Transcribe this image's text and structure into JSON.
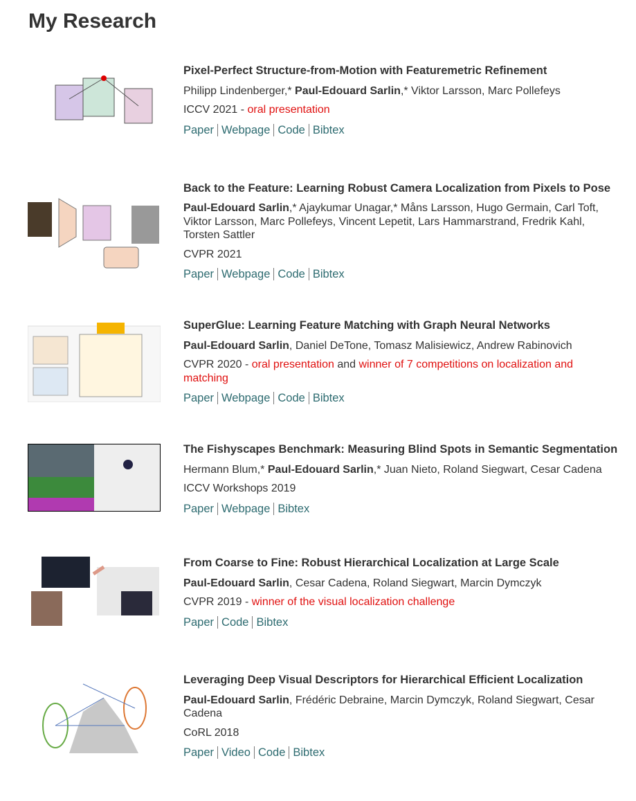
{
  "header": {
    "title": "My Research"
  },
  "publications": [
    {
      "title": "Pixel-Perfect Structure-from-Motion with Featuremetric Refinement",
      "authors": [
        {
          "text": "Philipp Lindenberger,* "
        },
        {
          "text": "Paul-Edouard Sarlin",
          "bold": true
        },
        {
          "text": ",* Viktor Larsson, Marc Pollefeys"
        }
      ],
      "venue": [
        {
          "text": "ICCV 2021 - "
        },
        {
          "text": "oral presentation",
          "highlight": true
        }
      ],
      "links": [
        "Paper",
        "Webpage",
        "Code",
        "Bibtex"
      ]
    },
    {
      "title": "Back to the Feature: Learning Robust Camera Localization from Pixels to Pose",
      "authors": [
        {
          "text": "Paul-Edouard Sarlin",
          "bold": true
        },
        {
          "text": ",* Ajaykumar Unagar,* Måns Larsson, Hugo Germain, Carl Toft, Viktor Larsson, Marc Pollefeys, Vincent Lepetit, Lars Hammarstrand, Fredrik Kahl, Torsten Sattler"
        }
      ],
      "venue": [
        {
          "text": "CVPR 2021"
        }
      ],
      "links": [
        "Paper",
        "Webpage",
        "Code",
        "Bibtex"
      ]
    },
    {
      "title": "SuperGlue: Learning Feature Matching with Graph Neural Networks",
      "authors": [
        {
          "text": "Paul-Edouard Sarlin",
          "bold": true
        },
        {
          "text": ", Daniel DeTone, Tomasz Malisiewicz, Andrew Rabinovich"
        }
      ],
      "venue": [
        {
          "text": "CVPR 2020 - "
        },
        {
          "text": "oral presentation",
          "highlight": true
        },
        {
          "text": " and "
        },
        {
          "text": "winner of 7 competitions on localization and matching",
          "highlight": true
        }
      ],
      "links": [
        "Paper",
        "Webpage",
        "Code",
        "Bibtex"
      ]
    },
    {
      "title": "The Fishyscapes Benchmark: Measuring Blind Spots in Semantic Segmentation",
      "authors": [
        {
          "text": "Hermann Blum,* "
        },
        {
          "text": "Paul-Edouard Sarlin",
          "bold": true
        },
        {
          "text": ",* Juan Nieto, Roland Siegwart, Cesar Cadena"
        }
      ],
      "venue": [
        {
          "text": "ICCV Workshops 2019"
        }
      ],
      "links": [
        "Paper",
        "Webpage",
        "Bibtex"
      ]
    },
    {
      "title": "From Coarse to Fine: Robust Hierarchical Localization at Large Scale",
      "authors": [
        {
          "text": "Paul-Edouard Sarlin",
          "bold": true
        },
        {
          "text": ", Cesar Cadena, Roland Siegwart, Marcin Dymczyk"
        }
      ],
      "venue": [
        {
          "text": "CVPR 2019 - "
        },
        {
          "text": "winner of the visual localization challenge",
          "highlight": true
        }
      ],
      "links": [
        "Paper",
        "Code",
        "Bibtex"
      ]
    },
    {
      "title": "Leveraging Deep Visual Descriptors for Hierarchical Efficient Localization",
      "authors": [
        {
          "text": "Paul-Edouard Sarlin",
          "bold": true
        },
        {
          "text": ", Frédéric Debraine, Marcin Dymczyk, Roland Siegwart, Cesar Cadena"
        }
      ],
      "venue": [
        {
          "text": "CoRL 2018"
        }
      ],
      "links": [
        "Paper",
        "Video",
        "Code",
        "Bibtex"
      ]
    }
  ]
}
